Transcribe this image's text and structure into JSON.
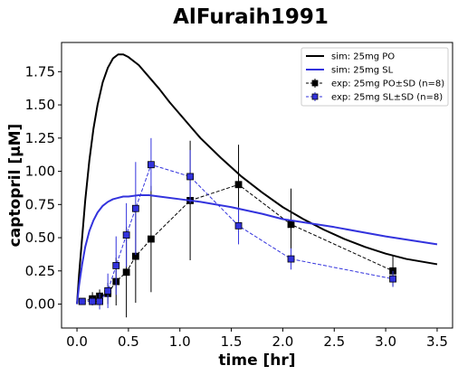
{
  "chart_data": {
    "type": "line",
    "title": "AlFuraih1991",
    "xlabel": "time [hr]",
    "ylabel": "captopril [μM]",
    "xlim": [
      -0.15,
      3.65
    ],
    "ylim": [
      -0.18,
      1.97
    ],
    "xticks": [
      "0.0",
      "0.5",
      "1.0",
      "1.5",
      "2.0",
      "2.5",
      "3.0",
      "3.5"
    ],
    "yticks": [
      "0.00",
      "0.25",
      "0.50",
      "0.75",
      "1.00",
      "1.25",
      "1.50",
      "1.75"
    ],
    "xtick_values": [
      0,
      0.5,
      1,
      1.5,
      2,
      2.5,
      3,
      3.5
    ],
    "ytick_values": [
      0,
      0.25,
      0.5,
      0.75,
      1,
      1.25,
      1.5,
      1.75
    ],
    "legend_position": "top-right",
    "series": [
      {
        "name": "sim: 25mg PO",
        "kind": "simulation",
        "color": "#000000",
        "x": [
          0,
          0.02,
          0.05,
          0.08,
          0.12,
          0.16,
          0.2,
          0.25,
          0.3,
          0.35,
          0.4,
          0.45,
          0.5,
          0.6,
          0.7,
          0.8,
          0.9,
          1.0,
          1.1,
          1.2,
          1.4,
          1.6,
          1.8,
          2.0,
          2.2,
          2.4,
          2.6,
          2.8,
          3.0,
          3.2,
          3.5
        ],
        "y": [
          0.0,
          0.22,
          0.5,
          0.78,
          1.08,
          1.32,
          1.5,
          1.67,
          1.78,
          1.85,
          1.88,
          1.88,
          1.86,
          1.8,
          1.71,
          1.62,
          1.52,
          1.43,
          1.34,
          1.25,
          1.1,
          0.96,
          0.84,
          0.73,
          0.64,
          0.56,
          0.49,
          0.43,
          0.38,
          0.34,
          0.3
        ]
      },
      {
        "name": "sim: 25mg SL",
        "kind": "simulation",
        "color": "#3333dd",
        "x": [
          0,
          0.02,
          0.05,
          0.08,
          0.12,
          0.16,
          0.2,
          0.25,
          0.3,
          0.35,
          0.4,
          0.45,
          0.5,
          0.6,
          0.7,
          0.8,
          1.0,
          1.2,
          1.5,
          1.8,
          2.0,
          2.5,
          3.0,
          3.5
        ],
        "y": [
          0.0,
          0.14,
          0.3,
          0.43,
          0.55,
          0.63,
          0.69,
          0.74,
          0.77,
          0.79,
          0.8,
          0.81,
          0.81,
          0.82,
          0.82,
          0.81,
          0.79,
          0.77,
          0.73,
          0.68,
          0.64,
          0.58,
          0.51,
          0.45
        ]
      },
      {
        "name": "exp: 25mg PO±SD (n=8)",
        "kind": "experiment",
        "color": "#000000",
        "x": [
          0.05,
          0.15,
          0.22,
          0.3,
          0.38,
          0.48,
          0.57,
          0.72,
          1.1,
          1.57,
          2.08,
          3.07
        ],
        "y": [
          0.02,
          0.04,
          0.06,
          0.08,
          0.17,
          0.24,
          0.36,
          0.49,
          0.78,
          0.9,
          0.6,
          0.25
        ],
        "sd": [
          0.02,
          0.05,
          0.05,
          0.08,
          0.18,
          0.34,
          0.35,
          0.4,
          0.45,
          0.3,
          0.27,
          0.12
        ]
      },
      {
        "name": "exp: 25mg SL±SD (n=8)",
        "kind": "experiment",
        "color": "#3333dd",
        "x": [
          0.05,
          0.15,
          0.22,
          0.3,
          0.38,
          0.48,
          0.57,
          0.72,
          1.1,
          1.57,
          2.08,
          3.07
        ],
        "y": [
          0.02,
          0.02,
          0.02,
          0.1,
          0.29,
          0.52,
          0.72,
          1.05,
          0.96,
          0.59,
          0.34,
          0.19
        ],
        "sd": [
          0.02,
          0.03,
          0.06,
          0.13,
          0.22,
          0.24,
          0.35,
          0.2,
          0.2,
          0.14,
          0.08,
          0.06
        ]
      }
    ]
  }
}
